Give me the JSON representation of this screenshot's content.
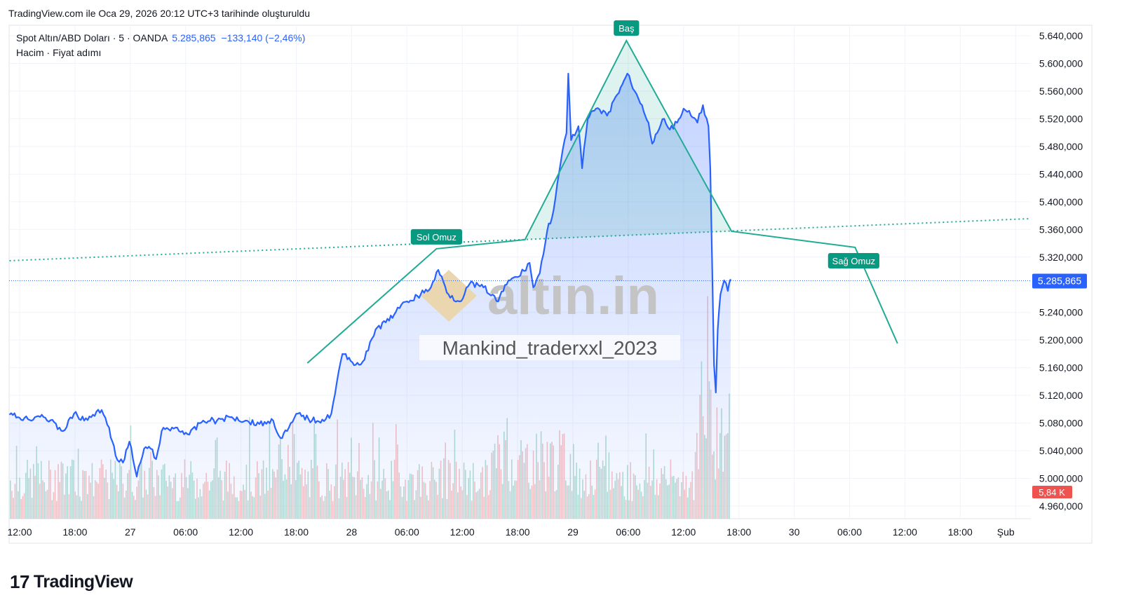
{
  "caption": "TradingView.com ile Oca 29, 2026 20:12 UTC+3 tarihinde oluşturuldu",
  "legend": {
    "symbol": "Spot Altın/ABD Doları · 5 · OANDA",
    "price": "5.285,865",
    "change": "−133,140 (−2,46%)",
    "indicators": "Hacim · Fiyat adımı"
  },
  "watermark": {
    "logo": "altin.in",
    "text": "Mankind_traderxxl_2023"
  },
  "footer": {
    "brand": "TradingView"
  },
  "colors": {
    "line": "#2962ff",
    "pattern": "#22ab94",
    "vol_up": "#a5d6c8",
    "vol_down": "#f5b5b5",
    "last_vol": "#ef5350"
  },
  "chart_data": {
    "type": "line",
    "title": "Spot Altın/ABD Doları · 5 · OANDA",
    "x_unit": "hours since Jan 26 12:00 (UTC+3)",
    "ylim": [
      4960000,
      5640000
    ],
    "y_ticks": [
      "5.640,000",
      "5.600,000",
      "5.560,000",
      "5.520,000",
      "5.480,000",
      "5.440,000",
      "5.400,000",
      "5.360,000",
      "5.320,000",
      "5.240,000",
      "5.200,000",
      "5.160,000",
      "5.120,000",
      "5.080,000",
      "5.040,000",
      "5.000,000",
      "4.960,000"
    ],
    "y_tick_values": [
      5640000,
      5600000,
      5560000,
      5520000,
      5480000,
      5440000,
      5400000,
      5360000,
      5320000,
      5240000,
      5200000,
      5160000,
      5120000,
      5080000,
      5040000,
      5000000,
      4960000
    ],
    "x_ticks": [
      "12:00",
      "18:00",
      "27",
      "06:00",
      "12:00",
      "18:00",
      "28",
      "06:00",
      "12:00",
      "18:00",
      "29",
      "06:00",
      "12:00",
      "18:00",
      "30",
      "06:00",
      "12:00",
      "18:00",
      "Şub"
    ],
    "x_tick_hours": [
      0,
      6,
      12,
      18,
      24,
      30,
      36,
      42,
      48,
      54,
      60,
      66,
      72,
      78,
      84,
      90,
      96,
      102,
      108
    ],
    "last_price": 5285865,
    "last_price_label": "5.285,865",
    "last_volume_label": "5,84 K",
    "series": [
      {
        "name": "Spot Altın/ABD Doları",
        "points": [
          [
            -1.1,
            5092000
          ],
          [
            0.9,
            5085700
          ],
          [
            2.4,
            5092000
          ],
          [
            4.7,
            5068400
          ],
          [
            5.9,
            5093800
          ],
          [
            7.0,
            5083600
          ],
          [
            8.9,
            5098900
          ],
          [
            9.7,
            5073500
          ],
          [
            10.4,
            5033000
          ],
          [
            11.2,
            5022800
          ],
          [
            11.9,
            5053200
          ],
          [
            12.7,
            5002600
          ],
          [
            13.5,
            5043100
          ],
          [
            14.2,
            5043100
          ],
          [
            14.8,
            5027900
          ],
          [
            15.4,
            5068400
          ],
          [
            16.9,
            5073500
          ],
          [
            18.4,
            5063400
          ],
          [
            19.9,
            5083600
          ],
          [
            21.4,
            5083600
          ],
          [
            23.0,
            5088700
          ],
          [
            24.5,
            5083600
          ],
          [
            26.0,
            5078600
          ],
          [
            27.5,
            5083600
          ],
          [
            28.3,
            5058300
          ],
          [
            29.0,
            5068400
          ],
          [
            30.2,
            5093800
          ],
          [
            31.7,
            5083600
          ],
          [
            33.2,
            5085700
          ],
          [
            33.8,
            5093800
          ],
          [
            34.4,
            5139400
          ],
          [
            35.0,
            5179900
          ],
          [
            35.9,
            5169800
          ],
          [
            37.0,
            5164700
          ],
          [
            37.8,
            5185000
          ],
          [
            38.6,
            5215400
          ],
          [
            39.7,
            5225500
          ],
          [
            40.8,
            5240700
          ],
          [
            42.0,
            5255900
          ],
          [
            43.5,
            5266100
          ],
          [
            44.6,
            5276200
          ],
          [
            45.4,
            5301500
          ],
          [
            46.5,
            5266100
          ],
          [
            47.7,
            5255900
          ],
          [
            48.8,
            5281300
          ],
          [
            50.3,
            5276200
          ],
          [
            51.9,
            5255900
          ],
          [
            53.0,
            5286300
          ],
          [
            54.1,
            5291400
          ],
          [
            55.3,
            5311700
          ],
          [
            55.7,
            5276200
          ],
          [
            56.4,
            5296500
          ],
          [
            57.2,
            5357300
          ],
          [
            57.9,
            5387700
          ],
          [
            58.7,
            5458600
          ],
          [
            59.3,
            5499100
          ],
          [
            59.5,
            5585300
          ],
          [
            59.8,
            5489000
          ],
          [
            60.6,
            5509300
          ],
          [
            61.0,
            5448500
          ],
          [
            61.6,
            5519400
          ],
          [
            62.5,
            5534600
          ],
          [
            63.7,
            5524500
          ],
          [
            64.8,
            5554900
          ],
          [
            65.9,
            5585300
          ],
          [
            66.7,
            5559900
          ],
          [
            67.5,
            5539700
          ],
          [
            68.2,
            5514300
          ],
          [
            68.6,
            5483900
          ],
          [
            69.7,
            5519400
          ],
          [
            70.5,
            5504200
          ],
          [
            71.3,
            5514300
          ],
          [
            72.0,
            5534600
          ],
          [
            72.8,
            5524500
          ],
          [
            73.5,
            5514300
          ],
          [
            74.1,
            5539700
          ],
          [
            74.7,
            5509300
          ],
          [
            74.9,
            5448500
          ],
          [
            75.1,
            5306600
          ],
          [
            75.3,
            5164700
          ],
          [
            75.5,
            5124200
          ],
          [
            75.7,
            5215400
          ],
          [
            76.0,
            5266100
          ],
          [
            76.4,
            5286300
          ],
          [
            76.8,
            5271000
          ],
          [
            77.1,
            5288000
          ]
        ]
      }
    ],
    "annotations": {
      "pattern_labels": [
        "Sol Omuz",
        "Baş",
        "Sağ Omuz"
      ],
      "head_shoulders_path": [
        [
          31.2,
          5166700
        ],
        [
          45.2,
          5332000
        ],
        [
          54.8,
          5345100
        ],
        [
          65.8,
          5633000
        ],
        [
          77.2,
          5357300
        ],
        [
          90.6,
          5334000
        ],
        [
          95.2,
          5195100
        ]
      ],
      "neckline": [
        [
          -1.1,
          5314700
        ],
        [
          109.5,
          5375500
        ]
      ]
    }
  }
}
